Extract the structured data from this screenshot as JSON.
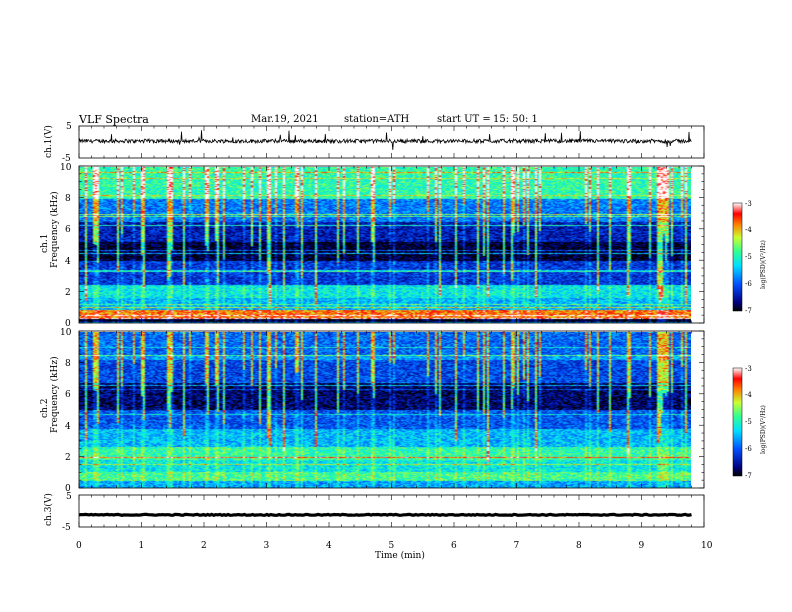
{
  "header": {
    "title": "VLF  Spectra",
    "date": "Mar.19, 2021",
    "station": "station=ATH",
    "start_label": "start  UT  =",
    "start_time": "15: 50: 1"
  },
  "chart_data": [
    {
      "type": "line",
      "panel": "ch1-waveform",
      "ylabel": "ch.1(V)",
      "yticks": [
        "5",
        "-5"
      ],
      "ylim": [
        -5,
        5
      ],
      "xlim": [
        0,
        10
      ],
      "baseline": 0.3,
      "noise_amplitude": 0.6,
      "spikes_upward_max": 3.5,
      "color": "#000000"
    },
    {
      "type": "heatmap",
      "panel": "ch1-spectrogram",
      "ylabel": "ch.1",
      "ylabel2": "Frequency  (kHz)",
      "yticks": [
        "0",
        "2",
        "4",
        "6",
        "8",
        "10"
      ],
      "ylim": [
        0,
        10
      ],
      "xlim": [
        0,
        9.8
      ],
      "colorbar": {
        "label": "log(PSD)(V²/Hz)",
        "ticks": [
          "-3",
          "-4",
          "-5",
          "-6",
          "-7"
        ],
        "range": [
          -7,
          -3
        ],
        "colormap": "jet"
      },
      "bands": [
        {
          "f_low": 0,
          "f_high": 0.2,
          "level": -7
        },
        {
          "f_low": 0.2,
          "f_high": 0.8,
          "level": -3.8
        },
        {
          "f_low": 0.8,
          "f_high": 1.6,
          "level": -5.5
        },
        {
          "f_low": 1.6,
          "f_high": 2.4,
          "level": -5.2
        },
        {
          "f_low": 2.4,
          "f_high": 4.0,
          "level": -6.2
        },
        {
          "f_low": 4.0,
          "f_high": 5.2,
          "level": -6.9
        },
        {
          "f_low": 5.2,
          "f_high": 6.5,
          "level": -6.4
        },
        {
          "f_low": 6.5,
          "f_high": 8.0,
          "level": -5.8
        },
        {
          "f_low": 8.0,
          "f_high": 10.0,
          "level": -4.9
        }
      ]
    },
    {
      "type": "heatmap",
      "panel": "ch2-spectrogram",
      "ylabel": "ch.2",
      "ylabel2": "Frequency  (kHz)",
      "yticks": [
        "0",
        "2",
        "4",
        "6",
        "8",
        "10"
      ],
      "ylim": [
        0,
        10
      ],
      "xlim": [
        0,
        9.8
      ],
      "colorbar": {
        "label": "log(PSD)(V²/Hz)",
        "ticks": [
          "-3",
          "-4",
          "-5",
          "-6",
          "-7"
        ],
        "range": [
          -7,
          -3
        ],
        "colormap": "jet"
      },
      "bands": [
        {
          "f_low": 0,
          "f_high": 0.4,
          "level": -5.6
        },
        {
          "f_low": 0.4,
          "f_high": 1.0,
          "level": -4.8
        },
        {
          "f_low": 1.0,
          "f_high": 1.8,
          "level": -5.2
        },
        {
          "f_low": 1.8,
          "f_high": 2.6,
          "level": -4.9
        },
        {
          "f_low": 2.6,
          "f_high": 3.8,
          "level": -5.5
        },
        {
          "f_low": 3.8,
          "f_high": 5.0,
          "level": -6.0
        },
        {
          "f_low": 5.0,
          "f_high": 6.8,
          "level": -6.7
        },
        {
          "f_low": 6.8,
          "f_high": 8.2,
          "level": -6.1
        },
        {
          "f_low": 8.2,
          "f_high": 10.0,
          "level": -5.6
        }
      ]
    },
    {
      "type": "line",
      "panel": "ch3-waveform",
      "ylabel": "ch.3(V)",
      "yticks": [
        "5",
        "-5"
      ],
      "ylim": [
        -5,
        5
      ],
      "xlim": [
        0,
        10
      ],
      "baseline": -1.2,
      "noise_amplitude": 0.15,
      "color": "#000000"
    }
  ],
  "x_axis": {
    "label": "Time  (min)",
    "ticks": [
      "0",
      "1",
      "2",
      "3",
      "4",
      "5",
      "6",
      "7",
      "8",
      "9",
      "10"
    ],
    "range": [
      0,
      10
    ]
  }
}
